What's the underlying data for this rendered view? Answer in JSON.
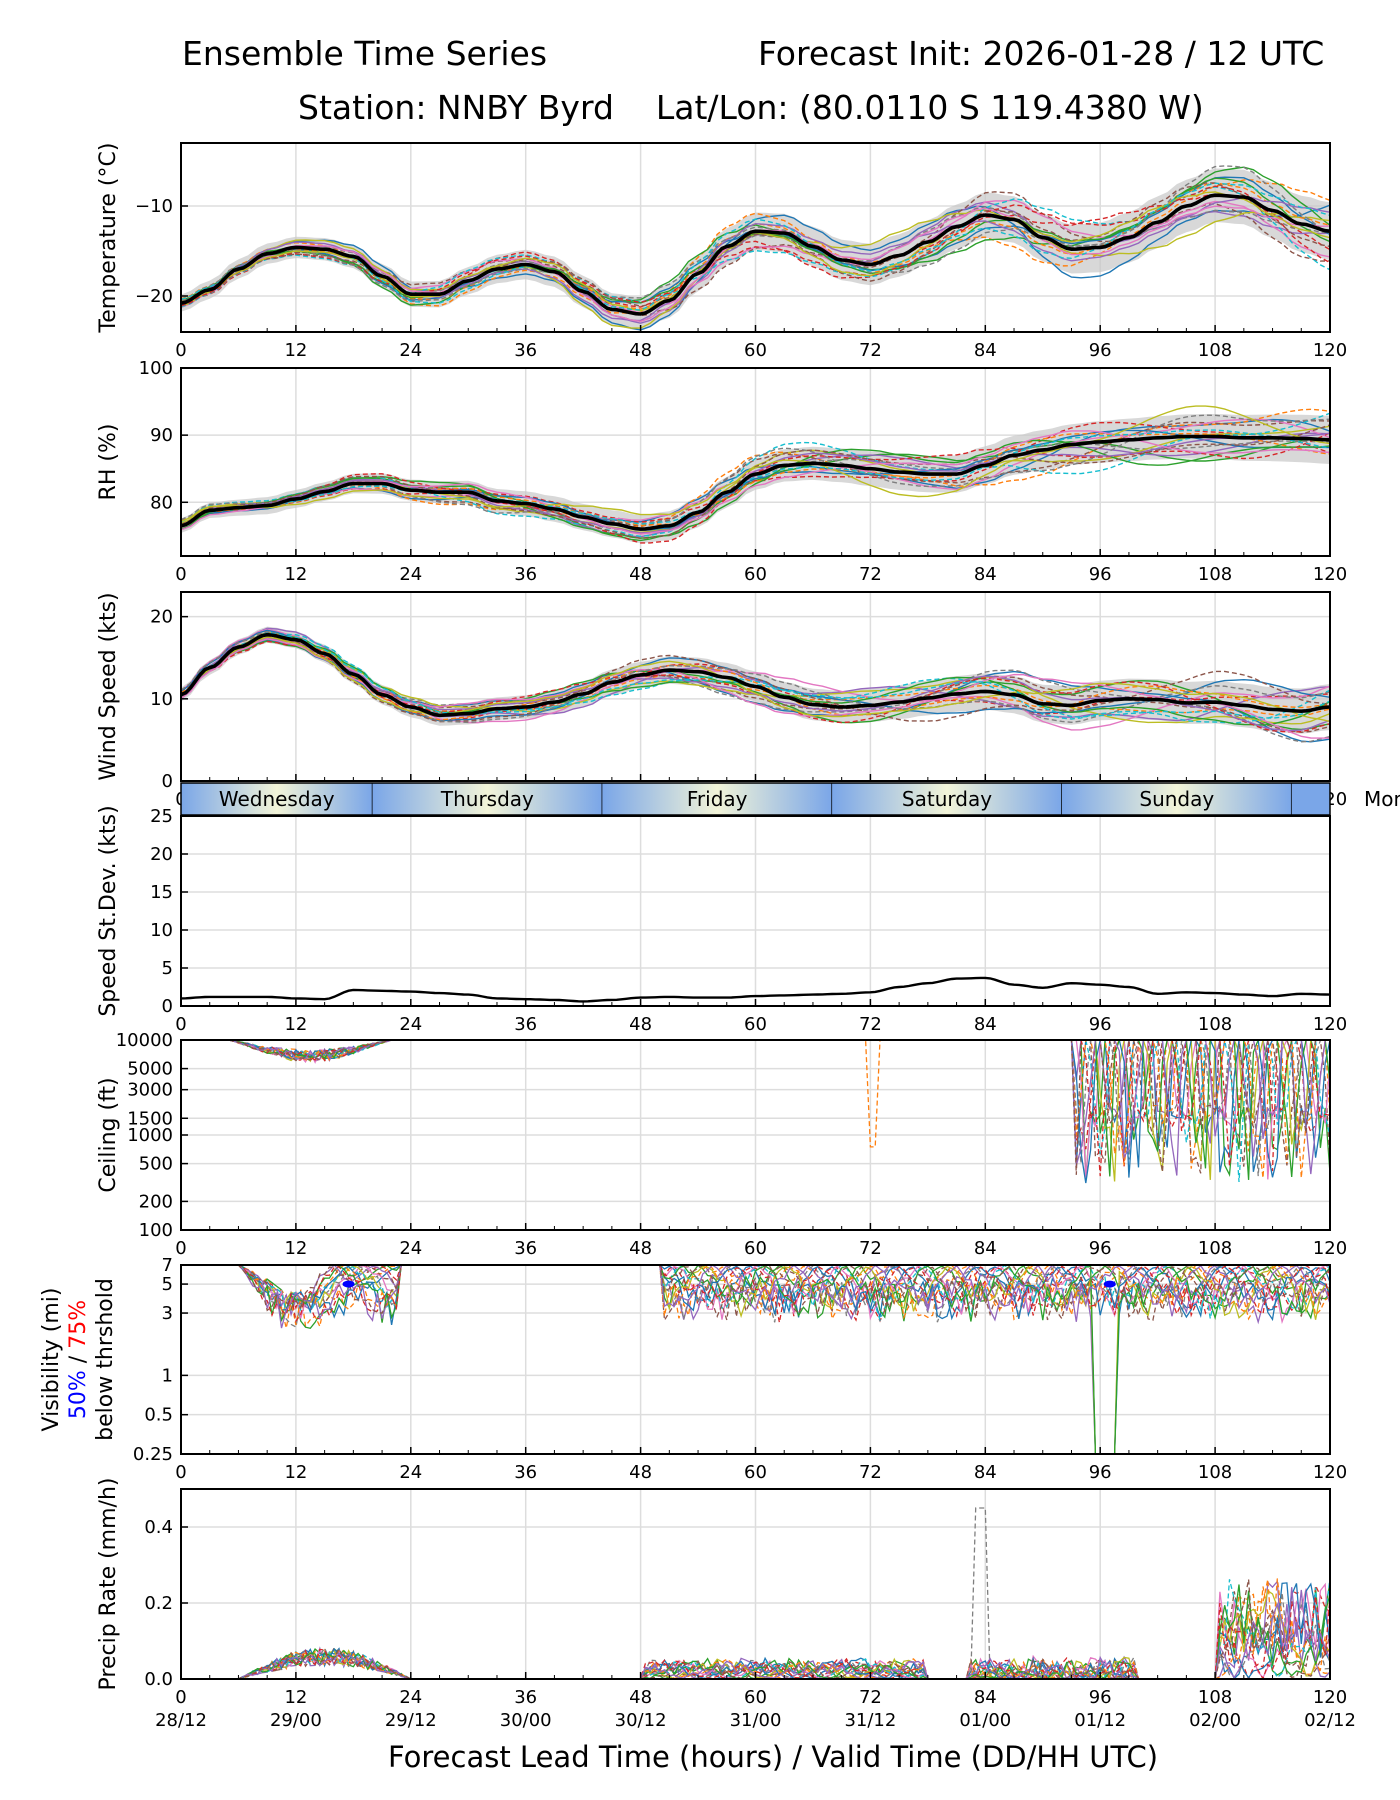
{
  "title": {
    "left": "Ensemble Time Series",
    "right": "Forecast Init: 2026-01-28 / 12 UTC",
    "station": "Station: NNBY Byrd",
    "latlon": "Lat/Lon: (80.0110 S 119.4380 W)"
  },
  "x_axis_label": "Forecast Lead Time (hours) / Valid Time (DD/HH UTC)",
  "chart_data": [
    {
      "type": "line",
      "ylabel": "Temperature (°C)",
      "ylim": [
        -24,
        -3
      ],
      "yticks": [
        -10,
        -20
      ],
      "ytick_labels": [
        "−10",
        "−20"
      ],
      "xlim": [
        0,
        120
      ],
      "xticks": [
        0,
        12,
        24,
        36,
        48,
        60,
        72,
        84,
        96,
        108,
        120
      ],
      "mean": {
        "x": [
          0,
          3,
          6,
          9,
          12,
          15,
          18,
          21,
          24,
          27,
          30,
          33,
          36,
          39,
          42,
          45,
          48,
          51,
          54,
          57,
          60,
          63,
          66,
          69,
          72,
          75,
          78,
          81,
          84,
          87,
          90,
          93,
          96,
          99,
          102,
          105,
          108,
          111,
          114,
          117,
          120
        ],
        "y": [
          -20.8,
          -19.3,
          -17.0,
          -15.3,
          -14.6,
          -14.8,
          -15.6,
          -17.8,
          -19.8,
          -19.8,
          -18.3,
          -17.0,
          -16.5,
          -17.3,
          -19.5,
          -21.5,
          -22.0,
          -20.5,
          -17.5,
          -14.5,
          -12.8,
          -13.0,
          -14.5,
          -16.0,
          -16.5,
          -15.5,
          -14.0,
          -12.3,
          -11.0,
          -11.5,
          -13.5,
          -14.8,
          -14.6,
          -13.5,
          -11.8,
          -10.0,
          -8.8,
          -9.0,
          -10.5,
          -12.0,
          -12.8
        ]
      },
      "spread": 1.6
    },
    {
      "type": "line",
      "ylabel": "RH (%)",
      "ylim": [
        72,
        100
      ],
      "yticks": [
        80,
        90,
        100
      ],
      "ytick_labels": [
        "80",
        "90",
        "100"
      ],
      "xlim": [
        0,
        120
      ],
      "xticks": [
        0,
        12,
        24,
        36,
        48,
        60,
        72,
        84,
        96,
        108,
        120
      ],
      "mean": {
        "x": [
          0,
          3,
          6,
          9,
          12,
          15,
          18,
          21,
          24,
          27,
          30,
          33,
          36,
          39,
          42,
          45,
          48,
          51,
          54,
          57,
          60,
          63,
          66,
          69,
          72,
          75,
          78,
          81,
          84,
          87,
          90,
          93,
          96,
          99,
          102,
          105,
          108,
          111,
          114,
          117,
          120
        ],
        "y": [
          76.5,
          78.8,
          79.2,
          79.5,
          80.5,
          81.6,
          82.8,
          82.8,
          81.8,
          81.5,
          81.5,
          80.2,
          79.8,
          79.0,
          77.8,
          76.8,
          76.0,
          76.5,
          78.5,
          81.5,
          84.2,
          85.5,
          85.8,
          85.5,
          85.0,
          84.5,
          84.2,
          84.2,
          85.5,
          87.0,
          87.8,
          88.6,
          89.0,
          89.3,
          89.6,
          89.8,
          89.8,
          89.6,
          89.6,
          89.5,
          89.3
        ]
      },
      "spread": 1.8
    },
    {
      "type": "line",
      "ylabel": "Wind Speed (kts)",
      "ylim": [
        0,
        23
      ],
      "yticks": [
        0,
        10,
        20
      ],
      "ytick_labels": [
        "0",
        "10",
        "20"
      ],
      "xlim": [
        0,
        120
      ],
      "xticks": [
        0,
        12,
        24,
        36,
        48,
        60,
        72,
        84,
        96,
        108,
        120
      ],
      "mean": {
        "x": [
          0,
          3,
          6,
          9,
          12,
          15,
          18,
          21,
          24,
          27,
          30,
          33,
          36,
          39,
          42,
          45,
          48,
          51,
          54,
          57,
          60,
          63,
          66,
          69,
          72,
          75,
          78,
          81,
          84,
          87,
          90,
          93,
          96,
          99,
          102,
          105,
          108,
          111,
          114,
          117,
          120
        ],
        "y": [
          10.5,
          13.8,
          16.3,
          17.8,
          17.2,
          15.5,
          13.0,
          10.5,
          9.0,
          8.0,
          8.2,
          8.8,
          9.0,
          9.6,
          10.6,
          12.0,
          12.9,
          13.5,
          13.3,
          12.6,
          11.5,
          10.2,
          9.3,
          9.0,
          9.2,
          9.6,
          10.1,
          10.6,
          10.9,
          10.5,
          9.4,
          9.2,
          9.8,
          10.0,
          9.9,
          9.5,
          9.6,
          9.2,
          8.7,
          8.5,
          9.0
        ]
      },
      "spread": 1.4
    },
    {
      "type": "line",
      "ylabel": "Speed St.Dev. (kts)",
      "ylim": [
        0,
        25
      ],
      "yticks": [
        0,
        5,
        10,
        15,
        20,
        25
      ],
      "ytick_labels": [
        "0",
        "5",
        "10",
        "15",
        "20",
        "25"
      ],
      "xlim": [
        0,
        120
      ],
      "xticks": [
        0,
        12,
        24,
        36,
        48,
        60,
        72,
        84,
        96,
        108,
        120
      ],
      "mean": {
        "x": [
          0,
          3,
          6,
          9,
          12,
          15,
          18,
          21,
          24,
          27,
          30,
          33,
          36,
          39,
          42,
          45,
          48,
          51,
          54,
          57,
          60,
          63,
          66,
          69,
          72,
          75,
          78,
          81,
          84,
          87,
          90,
          93,
          96,
          99,
          102,
          105,
          108,
          111,
          114,
          117,
          120
        ],
        "y": [
          1.0,
          1.2,
          1.2,
          1.2,
          1.0,
          0.9,
          2.1,
          2.0,
          1.9,
          1.7,
          1.5,
          1.0,
          0.9,
          0.8,
          0.6,
          0.8,
          1.1,
          1.2,
          1.1,
          1.1,
          1.3,
          1.4,
          1.5,
          1.6,
          1.8,
          2.5,
          3.0,
          3.6,
          3.7,
          2.8,
          2.4,
          3.0,
          2.8,
          2.5,
          1.6,
          1.8,
          1.7,
          1.5,
          1.3,
          1.6,
          1.5
        ]
      },
      "spread": 0
    },
    {
      "type": "line",
      "ylabel": "Ceiling (ft)",
      "scale": "log",
      "ylim": [
        100,
        10000
      ],
      "yticks": [
        100,
        200,
        500,
        1000,
        1500,
        3000,
        5000,
        10000
      ],
      "ytick_labels": [
        "100",
        "200",
        "500",
        "1000",
        "1500",
        "3000",
        "5000",
        "10000"
      ],
      "xlim": [
        0,
        120
      ],
      "xticks": [
        0,
        12,
        24,
        36,
        48,
        60,
        72,
        84,
        96,
        108,
        120
      ]
    },
    {
      "type": "line",
      "ylabel": "Visibility (mi)",
      "ylabel_pct50": "50%",
      "ylabel_sep": " / ",
      "ylabel_pct75": "75%",
      "ylabel_below": "below thrshold",
      "scale": "log",
      "ylim": [
        0.25,
        7
      ],
      "yticks": [
        0.25,
        0.5,
        1,
        3,
        5,
        7
      ],
      "ytick_labels": [
        "0.25",
        "0.5",
        "1",
        "3",
        "5",
        "7"
      ],
      "xlim": [
        0,
        120
      ],
      "xticks": [
        0,
        12,
        24,
        36,
        48,
        60,
        72,
        84,
        96,
        108,
        120
      ],
      "threshold_50_markers": [
        17.5,
        97.0
      ]
    },
    {
      "type": "line",
      "ylabel": "Precip Rate (mm/h)",
      "ylim": [
        0,
        0.5
      ],
      "yticks": [
        0.0,
        0.2,
        0.4
      ],
      "ytick_labels": [
        "0.0",
        "0.2",
        "0.4"
      ],
      "xlim": [
        0,
        120
      ],
      "xticks": [
        0,
        12,
        24,
        36,
        48,
        60,
        72,
        84,
        96,
        108,
        120
      ],
      "valid_time_labels": [
        "28/12",
        "29/00",
        "29/12",
        "30/00",
        "30/12",
        "31/00",
        "31/12",
        "01/00",
        "01/12",
        "02/00",
        "02/12"
      ]
    }
  ],
  "x_tick_labels": [
    "0",
    "12",
    "24",
    "36",
    "48",
    "60",
    "72",
    "84",
    "96",
    "108",
    "120"
  ],
  "days": [
    {
      "label": "Wednesday",
      "start": 0,
      "end": 20
    },
    {
      "label": "Thursday",
      "start": 20,
      "end": 44
    },
    {
      "label": "Friday",
      "start": 44,
      "end": 68
    },
    {
      "label": "Saturday",
      "start": 68,
      "end": 92
    },
    {
      "label": "Sunday",
      "start": 92,
      "end": 116
    },
    {
      "label": "Mon",
      "start": 116,
      "end": 120
    }
  ],
  "colors": {
    "mean": "#000000",
    "spread": "#c8c8c8",
    "grid": "#dddddd",
    "pct50": "#0000ff",
    "pct75": "#ff0000",
    "day_blue": "#7aa6e8",
    "day_cream": "#f2f4d8",
    "members": [
      "#1f77b4",
      "#ff7f0e",
      "#2ca02c",
      "#d62728",
      "#9467bd",
      "#8c564b",
      "#e377c2",
      "#7f7f7f",
      "#bcbd22",
      "#17becf"
    ]
  }
}
